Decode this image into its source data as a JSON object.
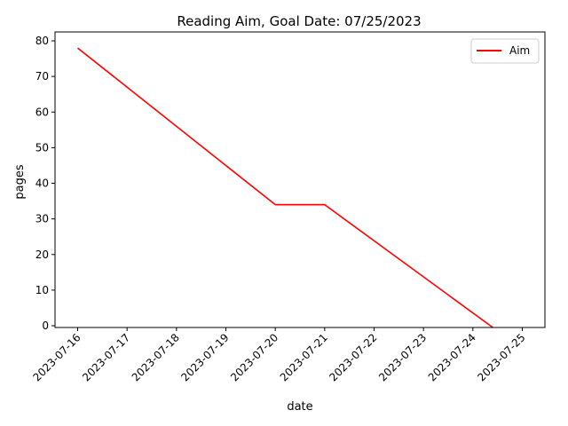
{
  "chart_data": {
    "type": "line",
    "title": "Reading Aim, Goal Date: 07/25/2023",
    "xlabel": "date",
    "ylabel": "pages",
    "x_ticks": [
      "2023-07-16",
      "2023-07-17",
      "2023-07-18",
      "2023-07-19",
      "2023-07-20",
      "2023-07-21",
      "2023-07-22",
      "2023-07-23",
      "2023-07-24",
      "2023-07-25"
    ],
    "y_ticks": [
      0,
      10,
      20,
      30,
      40,
      50,
      60,
      70,
      80
    ],
    "xlim": [
      "2023-07-15T13:00",
      "2023-07-25T11:00"
    ],
    "ylim": [
      -0.5,
      82.5
    ],
    "grid": false,
    "legend_position": "top-right",
    "series": [
      {
        "name": "Aim",
        "color": "#ff0000",
        "x": [
          "2023-07-16T00:00",
          "2023-07-20T00:00",
          "2023-07-21T00:00",
          "2023-07-24T09:41"
        ],
        "y": [
          78,
          34,
          34,
          -0.5
        ]
      }
    ]
  }
}
